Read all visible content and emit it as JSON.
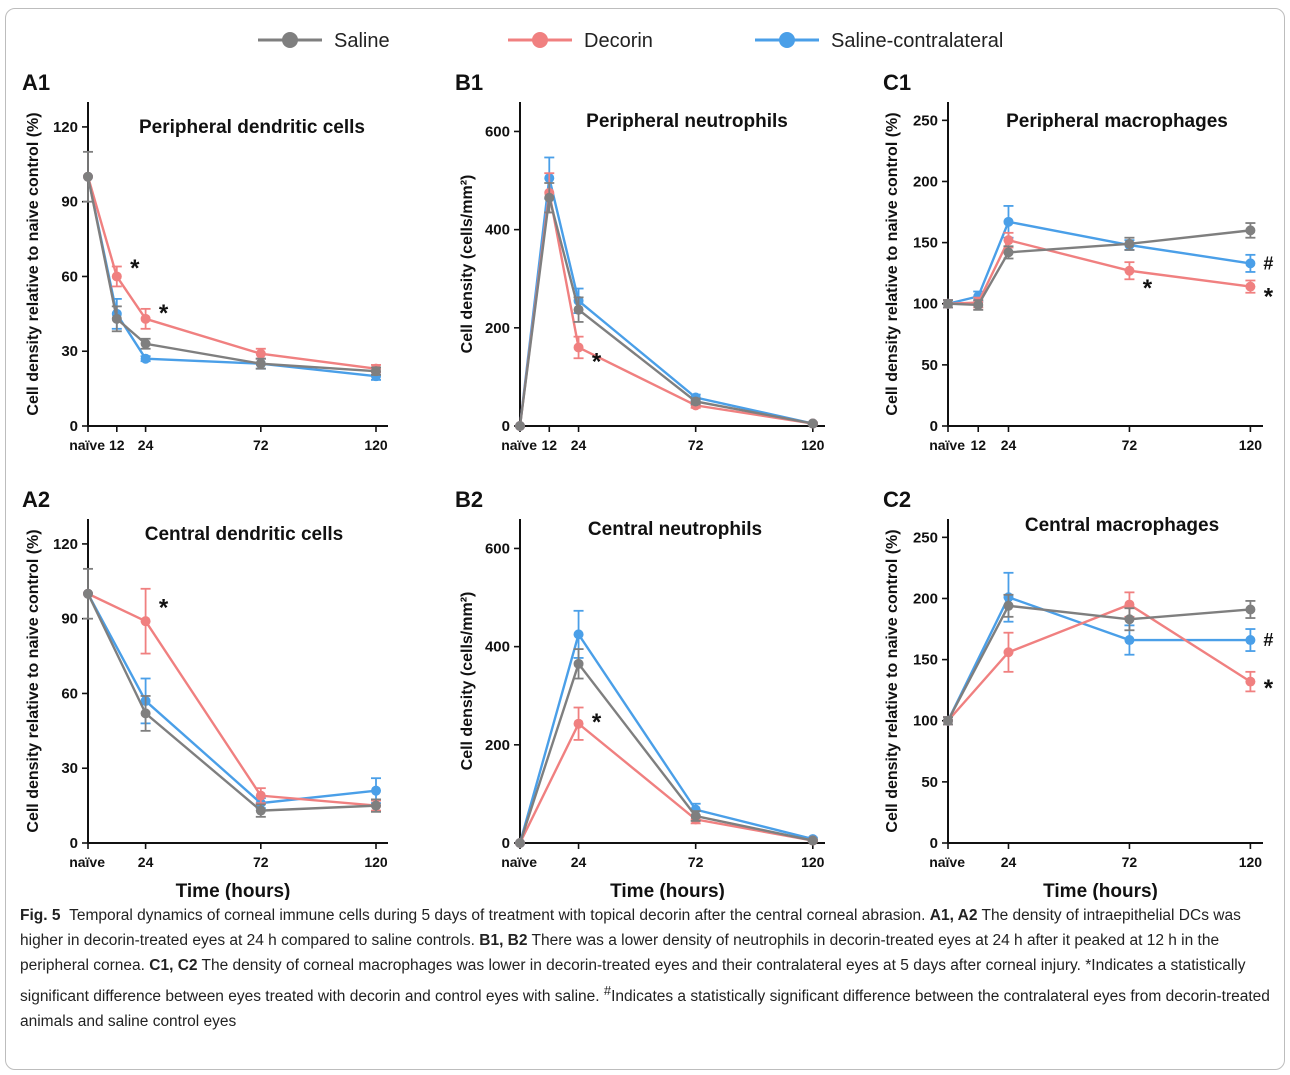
{
  "figure": {
    "legend": [
      {
        "name": "Saline",
        "color": "#7f7f7f"
      },
      {
        "name": "Decorin",
        "color": "#f08080"
      },
      {
        "name": "Saline-contralateral",
        "color": "#4a9fe8"
      }
    ],
    "xlabel_bottom": "Time (hours)",
    "caption": {
      "fig_label": "Fig. 5",
      "title": "Temporal dynamics of corneal immune cells during 5 days of treatment with topical decorin after the central corneal abrasion.",
      "a_panels": "A1, A2",
      "a_text": "The density of intraepithelial DCs was higher in decorin-treated eyes at 24 h compared to saline controls.",
      "b_panels": "B1, B2",
      "b_text": "There was a lower density of neutrophils in decorin-treated eyes at 24 h after it peaked at 12 h in the peripheral cornea.",
      "c_panels": "C1, C2",
      "c_text": "The density of corneal macrophages was lower in decorin-treated eyes and their contralateral eyes at 5 days after corneal injury.",
      "note_star": "*Indicates a statistically significant difference between eyes treated with decorin and control eyes with saline.",
      "note_hash_mark": "#",
      "note_hash": "Indicates a statistically significant difference between the contralateral eyes from decorin-treated animals and saline control eyes"
    }
  },
  "chart_data": [
    {
      "panel": "A1",
      "type": "line",
      "title": "Peripheral dendritic cells",
      "ylabel": "Cell density relative to naive control (%)",
      "xlabel": "",
      "x": [
        0,
        12,
        24,
        72,
        120
      ],
      "xticks": [
        0,
        12,
        24,
        72,
        120
      ],
      "xtick_labels": [
        "naïve",
        "12",
        "24",
        "72",
        "120"
      ],
      "ylim": [
        0,
        130
      ],
      "yticks": [
        0,
        30,
        60,
        90,
        120
      ],
      "series": [
        {
          "name": "Saline",
          "values": [
            100,
            43,
            33,
            25,
            22
          ],
          "errors": [
            10,
            5,
            2,
            2,
            1.5
          ]
        },
        {
          "name": "Decorin",
          "values": [
            100,
            60,
            43,
            29,
            23
          ],
          "errors": [
            0,
            4,
            4,
            2,
            1.5
          ]
        },
        {
          "name": "Saline-contralateral",
          "values": [
            100,
            45,
            27,
            25,
            20
          ],
          "errors": [
            0,
            6,
            1,
            2,
            1.5
          ]
        }
      ],
      "annotations": [
        {
          "text": "*",
          "x": 12,
          "y": 65
        },
        {
          "text": "*",
          "x": 24,
          "y": 47
        }
      ]
    },
    {
      "panel": "B1",
      "type": "line",
      "title": "Peripheral neutrophils",
      "ylabel": "Cell density (cells/mm²)",
      "xlabel": "",
      "x": [
        0,
        12,
        24,
        72,
        120
      ],
      "xticks": [
        0,
        12,
        24,
        72,
        120
      ],
      "xtick_labels": [
        "naïve",
        "12",
        "24",
        "72",
        "120"
      ],
      "ylim": [
        0,
        660
      ],
      "yticks": [
        0,
        200,
        400,
        600
      ],
      "series": [
        {
          "name": "Saline",
          "values": [
            0,
            465,
            237,
            50,
            5
          ],
          "errors": [
            0,
            30,
            25,
            6,
            2
          ]
        },
        {
          "name": "Decorin",
          "values": [
            0,
            475,
            160,
            42,
            5
          ],
          "errors": [
            0,
            40,
            22,
            5,
            2
          ]
        },
        {
          "name": "Saline-contralateral",
          "values": [
            0,
            505,
            255,
            58,
            5
          ],
          "errors": [
            0,
            42,
            25,
            6,
            2
          ]
        }
      ],
      "annotations": [
        {
          "text": "*",
          "x": 24,
          "y": 140
        }
      ]
    },
    {
      "panel": "C1",
      "type": "line",
      "title": "Peripheral macrophages",
      "ylabel": "Cell density relative to naive control (%)",
      "xlabel": "",
      "x": [
        0,
        12,
        24,
        72,
        120
      ],
      "xticks": [
        0,
        12,
        24,
        72,
        120
      ],
      "xtick_labels": [
        "naïve",
        "12",
        "24",
        "72",
        "120"
      ],
      "ylim": [
        0,
        265
      ],
      "yticks": [
        0,
        50,
        100,
        150,
        200,
        250
      ],
      "series": [
        {
          "name": "Saline",
          "values": [
            100,
            99,
            142,
            149,
            160
          ],
          "errors": [
            3,
            4,
            5,
            5,
            6
          ]
        },
        {
          "name": "Decorin",
          "values": [
            100,
            101,
            152,
            127,
            114
          ],
          "errors": [
            3,
            4,
            6,
            7,
            5
          ]
        },
        {
          "name": "Saline-contralateral",
          "values": [
            100,
            106,
            167,
            148,
            133
          ],
          "errors": [
            3,
            4,
            13,
            4,
            7
          ]
        }
      ],
      "annotations": [
        {
          "text": "*",
          "x": 72,
          "y": 116
        },
        {
          "text": "#",
          "x": 120,
          "y": 133
        },
        {
          "text": "*",
          "x": 120,
          "y": 109
        }
      ]
    },
    {
      "panel": "A2",
      "type": "line",
      "title": "Central dendritic cells",
      "ylabel": "Cell density relative to naive control (%)",
      "xlabel": "Time (hours)",
      "x": [
        0,
        24,
        72,
        120
      ],
      "xticks": [
        0,
        24,
        72,
        120
      ],
      "xtick_labels": [
        "naïve",
        "24",
        "72",
        "120"
      ],
      "ylim": [
        0,
        130
      ],
      "yticks": [
        0,
        30,
        60,
        90,
        120
      ],
      "series": [
        {
          "name": "Saline",
          "values": [
            100,
            52,
            13,
            15
          ],
          "errors": [
            10,
            7,
            2.5,
            2.5
          ]
        },
        {
          "name": "Decorin",
          "values": [
            100,
            89,
            19,
            15
          ],
          "errors": [
            0,
            13,
            3,
            2
          ]
        },
        {
          "name": "Saline-contralateral",
          "values": [
            100,
            57,
            16,
            21
          ],
          "errors": [
            0,
            9,
            2,
            5
          ]
        }
      ],
      "annotations": [
        {
          "text": "*",
          "x": 24,
          "y": 96
        }
      ]
    },
    {
      "panel": "B2",
      "type": "line",
      "title": "Central neutrophils",
      "ylabel": "Cell density (cells/mm²)",
      "xlabel": "Time (hours)",
      "x": [
        0,
        24,
        72,
        120
      ],
      "xticks": [
        0,
        24,
        72,
        120
      ],
      "xtick_labels": [
        "naïve",
        "24",
        "72",
        "120"
      ],
      "ylim": [
        0,
        660
      ],
      "yticks": [
        0,
        200,
        400,
        600
      ],
      "series": [
        {
          "name": "Saline",
          "values": [
            0,
            365,
            55,
            5
          ],
          "errors": [
            0,
            30,
            10,
            2
          ]
        },
        {
          "name": "Decorin",
          "values": [
            0,
            243,
            48,
            5
          ],
          "errors": [
            0,
            33,
            8,
            2
          ]
        },
        {
          "name": "Saline-contralateral",
          "values": [
            0,
            425,
            68,
            8
          ],
          "errors": [
            0,
            48,
            12,
            3
          ]
        }
      ],
      "annotations": [
        {
          "text": "*",
          "x": 24,
          "y": 255
        }
      ]
    },
    {
      "panel": "C2",
      "type": "line",
      "title": "Central macrophages",
      "ylabel": "Cell density relative to naive control (%)",
      "xlabel": "Time (hours)",
      "x": [
        0,
        24,
        72,
        120
      ],
      "xticks": [
        0,
        24,
        72,
        120
      ],
      "xtick_labels": [
        "naïve",
        "24",
        "72",
        "120"
      ],
      "ylim": [
        0,
        265
      ],
      "yticks": [
        0,
        50,
        100,
        150,
        200,
        250
      ],
      "series": [
        {
          "name": "Saline",
          "values": [
            100,
            194,
            183,
            191
          ],
          "errors": [
            3,
            9,
            9,
            7
          ]
        },
        {
          "name": "Decorin",
          "values": [
            100,
            156,
            195,
            132
          ],
          "errors": [
            3,
            16,
            10,
            8
          ]
        },
        {
          "name": "Saline-contralateral",
          "values": [
            100,
            201,
            166,
            166
          ],
          "errors": [
            3,
            20,
            12,
            9
          ]
        }
      ],
      "annotations": [
        {
          "text": "#",
          "x": 120,
          "y": 166
        },
        {
          "text": "*",
          "x": 120,
          "y": 130
        }
      ]
    }
  ]
}
